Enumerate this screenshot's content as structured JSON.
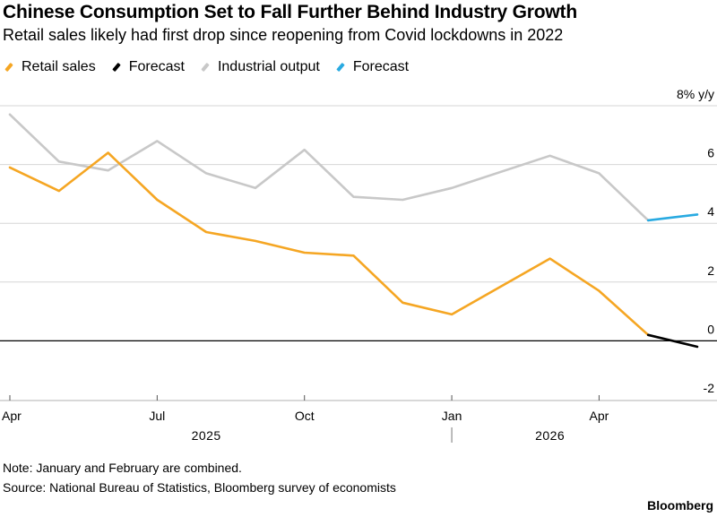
{
  "header": {
    "title": "Chinese Consumption Set to Fall Further Behind Industry Growth",
    "subtitle": "Retail sales likely had first drop since reopening from Covid lockdowns in 2022"
  },
  "footer": {
    "note": "Note: January and February are combined.",
    "source": "Source: National Bureau of Statistics, Bloomberg survey of economists",
    "brand": "Bloomberg"
  },
  "colors": {
    "retail": "#f5a623",
    "retail_forecast": "#000000",
    "industrial": "#c8c8c8",
    "industrial_forecast": "#29aae1",
    "grid": "#d6d6d6",
    "zero": "#000000"
  },
  "chart_data": {
    "type": "line",
    "x": [
      "2025-04",
      "2025-05",
      "2025-06",
      "2025-07",
      "2025-08",
      "2025-09",
      "2025-10",
      "2025-11",
      "2025-12",
      "2026-01",
      "2026-03",
      "2026-04",
      "2026-05",
      "2026-06"
    ],
    "ylabel": "8% y/y",
    "ylim": [
      -2,
      8
    ],
    "yticks": [
      {
        "value": 8,
        "label": "8% y/y"
      },
      {
        "value": 6,
        "label": "6"
      },
      {
        "value": 4,
        "label": "4"
      },
      {
        "value": 2,
        "label": "2"
      },
      {
        "value": 0,
        "label": "0"
      },
      {
        "value": -2,
        "label": "-2"
      }
    ],
    "xticks": [
      {
        "date": "2025-04",
        "label": "Apr"
      },
      {
        "date": "2025-07",
        "label": "Jul"
      },
      {
        "date": "2025-10",
        "label": "Oct"
      },
      {
        "date": "2026-01",
        "label": "Jan"
      },
      {
        "date": "2026-04",
        "label": "Apr"
      }
    ],
    "years": [
      {
        "date": "2025-08",
        "label": "2025"
      },
      {
        "date": "2026-03",
        "label": "2026"
      }
    ],
    "grid": true,
    "legend_position": "top-left",
    "series": [
      {
        "name": "Retail sales",
        "color": "#f5a623",
        "points": [
          {
            "x": "2025-04",
            "y": 5.9
          },
          {
            "x": "2025-05",
            "y": 5.1
          },
          {
            "x": "2025-06",
            "y": 6.4
          },
          {
            "x": "2025-07",
            "y": 4.8
          },
          {
            "x": "2025-08",
            "y": 3.7
          },
          {
            "x": "2025-09",
            "y": 3.4
          },
          {
            "x": "2025-10",
            "y": 3.0
          },
          {
            "x": "2025-11",
            "y": 2.9
          },
          {
            "x": "2025-12",
            "y": 1.3
          },
          {
            "x": "2026-01",
            "y": 0.9
          },
          {
            "x": "2026-03",
            "y": 2.8
          },
          {
            "x": "2026-04",
            "y": 1.7
          },
          {
            "x": "2026-05",
            "y": 0.2
          }
        ]
      },
      {
        "name": "Forecast",
        "color": "#000000",
        "points": [
          {
            "x": "2026-05",
            "y": 0.2
          },
          {
            "x": "2026-06",
            "y": -0.2
          }
        ]
      },
      {
        "name": "Industrial output",
        "color": "#c8c8c8",
        "points": [
          {
            "x": "2025-04",
            "y": 7.7
          },
          {
            "x": "2025-05",
            "y": 6.1
          },
          {
            "x": "2025-06",
            "y": 5.8
          },
          {
            "x": "2025-07",
            "y": 6.8
          },
          {
            "x": "2025-08",
            "y": 5.7
          },
          {
            "x": "2025-09",
            "y": 5.2
          },
          {
            "x": "2025-10",
            "y": 6.5
          },
          {
            "x": "2025-11",
            "y": 4.9
          },
          {
            "x": "2025-12",
            "y": 4.8
          },
          {
            "x": "2026-01",
            "y": 5.2
          },
          {
            "x": "2026-03",
            "y": 6.3
          },
          {
            "x": "2026-04",
            "y": 5.7
          },
          {
            "x": "2026-05",
            "y": 4.1
          }
        ]
      },
      {
        "name": "Forecast",
        "color": "#29aae1",
        "points": [
          {
            "x": "2026-05",
            "y": 4.1
          },
          {
            "x": "2026-06",
            "y": 4.3
          }
        ]
      }
    ]
  }
}
